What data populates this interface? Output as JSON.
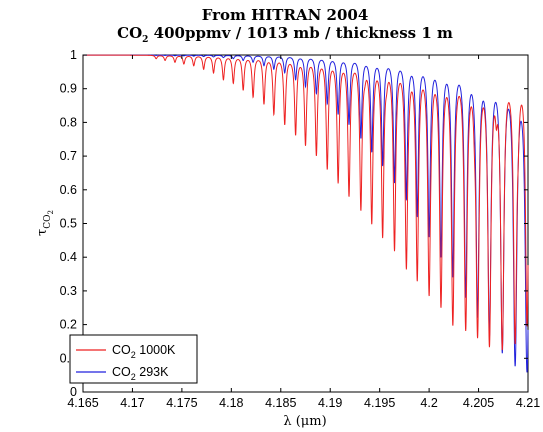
{
  "chart_data": {
    "type": "line",
    "title": "From HITRAN 2004",
    "subtitle": {
      "prefix": "CO",
      "prefix_sub": "2",
      "rest": " 400ppmv / 1013 mb / thickness 1 m"
    },
    "xlabel": "λ (μm)",
    "ylabel": {
      "main": "τ",
      "sub": "CO",
      "subsub": "2"
    },
    "xlim": [
      4.165,
      4.21
    ],
    "ylim": [
      0,
      1
    ],
    "xticks": [
      "4.165",
      "4.17",
      "4.175",
      "4.18",
      "4.185",
      "4.19",
      "4.195",
      "4.2",
      "4.205",
      "4.21"
    ],
    "yticks": [
      "0",
      "0.1",
      "0.2",
      "0.3",
      "0.4",
      "0.5",
      "0.6",
      "0.7",
      "0.8",
      "0.9",
      "1"
    ],
    "grid": false,
    "legend_position": "bottom-left",
    "series": [
      {
        "name": {
          "main": "CO",
          "sub": "2",
          "rest": " 1000K"
        },
        "color": "#ee2222",
        "line_positions": [
          4.1724,
          4.1733,
          4.1743,
          4.1752,
          4.1762,
          4.1772,
          4.1782,
          4.1792,
          4.1802,
          4.1812,
          4.1822,
          4.1833,
          4.1843,
          4.1854,
          4.1865,
          4.1875,
          4.1886,
          4.1897,
          4.1908,
          4.1919,
          4.1931,
          4.1942,
          4.1953,
          4.1965,
          4.1977,
          4.1988,
          4.2,
          4.2012,
          4.2024,
          4.2037,
          4.2049,
          4.2061,
          4.2074,
          4.2087,
          4.2099
        ],
        "line_minima": [
          0.99,
          0.985,
          0.98,
          0.975,
          0.97,
          0.96,
          0.95,
          0.93,
          0.92,
          0.9,
          0.88,
          0.86,
          0.83,
          0.8,
          0.77,
          0.74,
          0.71,
          0.67,
          0.63,
          0.59,
          0.55,
          0.51,
          0.47,
          0.43,
          0.38,
          0.34,
          0.3,
          0.26,
          0.22,
          0.19,
          0.17,
          0.14,
          0.13,
          0.15,
          0.2
        ],
        "secondary_positions": [
          4.1935,
          4.1957,
          4.1979,
          4.2002,
          4.2024,
          4.2046,
          4.2068,
          4.209
        ],
        "secondary_minima": [
          0.98,
          0.97,
          0.96,
          0.94,
          0.93,
          0.92,
          0.91,
          0.9
        ]
      },
      {
        "name": {
          "main": "CO",
          "sub": "2",
          "rest": " 293K"
        },
        "color": "#2222dd",
        "line_positions": [
          4.1724,
          4.1733,
          4.1743,
          4.1752,
          4.1762,
          4.1772,
          4.1782,
          4.1792,
          4.1802,
          4.1812,
          4.1822,
          4.1833,
          4.1843,
          4.1854,
          4.1865,
          4.1875,
          4.1886,
          4.1897,
          4.1908,
          4.1919,
          4.1931,
          4.1942,
          4.1953,
          4.1965,
          4.1977,
          4.1988,
          4.2,
          4.2012,
          4.2024,
          4.2037,
          4.2049,
          4.2061,
          4.2074,
          4.2087,
          4.2099
        ],
        "line_minima": [
          0.999,
          0.999,
          0.998,
          0.998,
          0.997,
          0.996,
          0.995,
          0.993,
          0.99,
          0.985,
          0.98,
          0.97,
          0.96,
          0.95,
          0.93,
          0.91,
          0.89,
          0.86,
          0.83,
          0.8,
          0.76,
          0.72,
          0.68,
          0.63,
          0.58,
          0.53,
          0.47,
          0.41,
          0.35,
          0.29,
          0.23,
          0.17,
          0.12,
          0.08,
          0.06
        ],
        "secondary_positions": [],
        "secondary_minima": []
      }
    ]
  }
}
